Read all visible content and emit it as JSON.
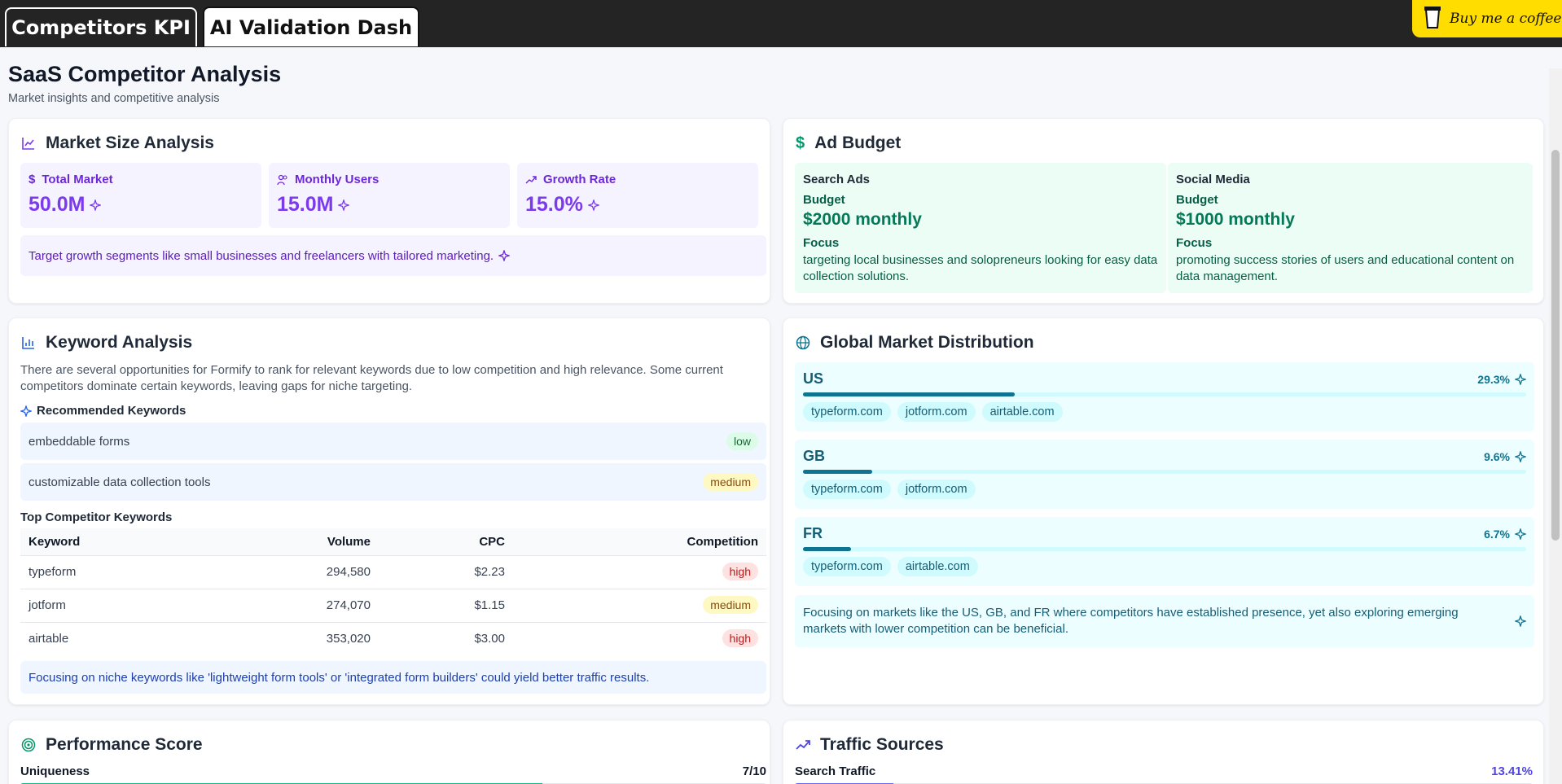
{
  "tabs": [
    {
      "label": "Competitors KPI"
    },
    {
      "label": "AI Validation Dash"
    }
  ],
  "coffee_label": "Buy me a coffee",
  "page": {
    "title": "SaaS Competitor Analysis",
    "subtitle": "Market insights and competitive analysis"
  },
  "market": {
    "title": "Market Size Analysis",
    "stats": [
      {
        "label": "Total Market",
        "value": "50.0M",
        "icon": "dollar-icon"
      },
      {
        "label": "Monthly Users",
        "value": "15.0M",
        "icon": "users-icon"
      },
      {
        "label": "Growth Rate",
        "value": "15.0%",
        "icon": "trend-up-icon"
      }
    ],
    "note": "Target growth segments like small businesses and freelancers with tailored marketing."
  },
  "ad": {
    "title": "Ad Budget",
    "items": [
      {
        "type": "Search Ads",
        "budget_label": "Budget",
        "budget": "$2000 monthly",
        "focus_label": "Focus",
        "focus": "targeting local businesses and solopreneurs looking for easy data collection solutions."
      },
      {
        "type": "Social Media",
        "budget_label": "Budget",
        "budget": "$1000 monthly",
        "focus_label": "Focus",
        "focus": "promoting success stories of users and educational content on data management."
      }
    ]
  },
  "keywords": {
    "title": "Keyword Analysis",
    "description": "There are several opportunities for Formify to rank for relevant keywords due to low competition and high relevance. Some current competitors dominate certain keywords, leaving gaps for niche targeting.",
    "recommended_title": "Recommended Keywords",
    "recommended": [
      {
        "keyword": "embeddable forms",
        "level": "low"
      },
      {
        "keyword": "customizable data collection tools",
        "level": "medium"
      }
    ],
    "competitor_title": "Top Competitor Keywords",
    "columns": [
      "Keyword",
      "Volume",
      "CPC",
      "Competition"
    ],
    "rows": [
      {
        "keyword": "typeform",
        "volume": "294,580",
        "cpc": "$2.23",
        "competition": "high"
      },
      {
        "keyword": "jotform",
        "volume": "274,070",
        "cpc": "$1.15",
        "competition": "medium"
      },
      {
        "keyword": "airtable",
        "volume": "353,020",
        "cpc": "$3.00",
        "competition": "high"
      }
    ],
    "note": "Focusing on niche keywords like 'lightweight form tools' or 'integrated form builders' could yield better traffic results."
  },
  "global": {
    "title": "Global Market Distribution",
    "markets": [
      {
        "code": "US",
        "pct": "29.3%",
        "share": 29.3,
        "domains": [
          "typeform.com",
          "jotform.com",
          "airtable.com"
        ]
      },
      {
        "code": "GB",
        "pct": "9.6%",
        "share": 9.6,
        "domains": [
          "typeform.com",
          "jotform.com"
        ]
      },
      {
        "code": "FR",
        "pct": "6.7%",
        "share": 6.7,
        "domains": [
          "typeform.com",
          "airtable.com"
        ]
      }
    ],
    "note": "Focusing on markets like the US, GB, and FR where competitors have established presence, yet also exploring emerging markets with lower competition can be beneficial."
  },
  "performance": {
    "title": "Performance Score",
    "metric_label": "Uniqueness",
    "metric_value": "7/10",
    "fill": 0.7
  },
  "traffic": {
    "title": "Traffic Sources",
    "metric_label": "Search Traffic",
    "metric_value": "13.41%",
    "fill": 0.1341
  },
  "colors": {
    "purple": "#7c3aed",
    "green": "#047857",
    "cyan": "#0e7490",
    "blue": "#1e40af"
  }
}
